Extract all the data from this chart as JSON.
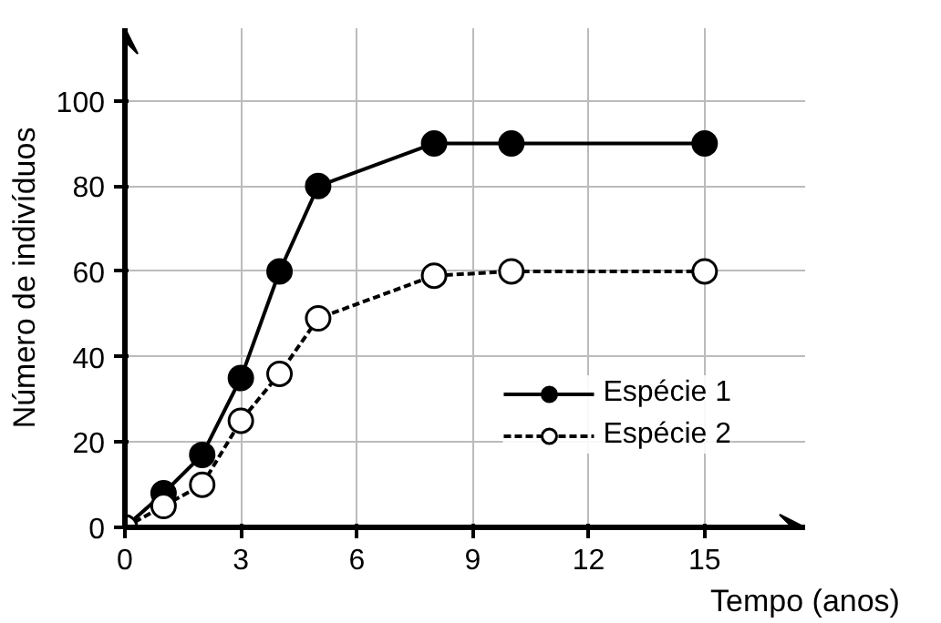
{
  "chart_data": {
    "type": "line",
    "xlabel": "Tempo (anos)",
    "ylabel": "Número de indivíduos",
    "xlim": [
      0,
      17.6
    ],
    "ylim": [
      0,
      117
    ],
    "xticks": [
      0,
      3,
      6,
      9,
      12,
      15
    ],
    "yticks": [
      0,
      20,
      40,
      60,
      80,
      100
    ],
    "grid": true,
    "legend": "bottom right",
    "marker": "circle",
    "series": [
      {
        "name": "Espécie 1",
        "color": "#000000",
        "line_style": "solid",
        "x": [
          0,
          1,
          2,
          3,
          4,
          5,
          8,
          10,
          15
        ],
        "values": [
          0,
          8,
          17,
          35,
          60,
          80,
          90,
          90,
          90
        ]
      },
      {
        "name": "Espécie 2",
        "color": "#000000",
        "line_style": "dashed",
        "x": [
          0,
          1,
          2,
          3,
          4,
          5,
          8,
          10,
          15
        ],
        "values": [
          0,
          5,
          10,
          25,
          36,
          49,
          59,
          60,
          60
        ]
      }
    ]
  }
}
